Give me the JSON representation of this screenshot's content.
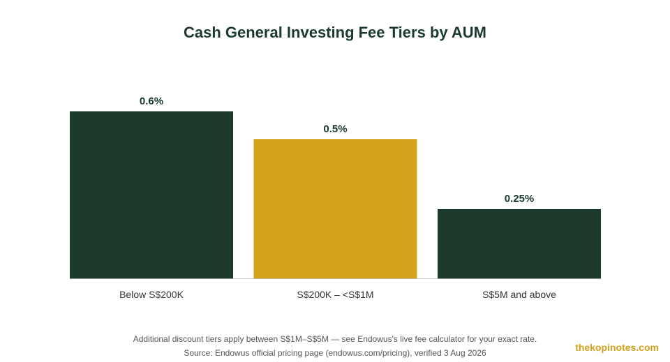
{
  "title": "Cash General Investing Fee Tiers by AUM",
  "chart_data": {
    "type": "bar",
    "categories": [
      "Below S$200K",
      "S$200K – <S$1M",
      "S$5M and above"
    ],
    "values": [
      0.6,
      0.5,
      0.25
    ],
    "value_labels": [
      "0.6%",
      "0.5%",
      "0.25%"
    ],
    "colors": [
      "#1c3b2c",
      "#d4a21b",
      "#1c3b2c"
    ],
    "ylim": [
      0,
      0.6
    ],
    "grid": false,
    "legend": "none"
  },
  "footnote": "Additional discount tiers apply between S$1M–S$5M — see Endowus's live fee calculator for your exact rate.",
  "source": "Source: Endowus official pricing page (endowus.com/pricing), verified 3 Aug 2026",
  "brand": "thekopinotes.com"
}
